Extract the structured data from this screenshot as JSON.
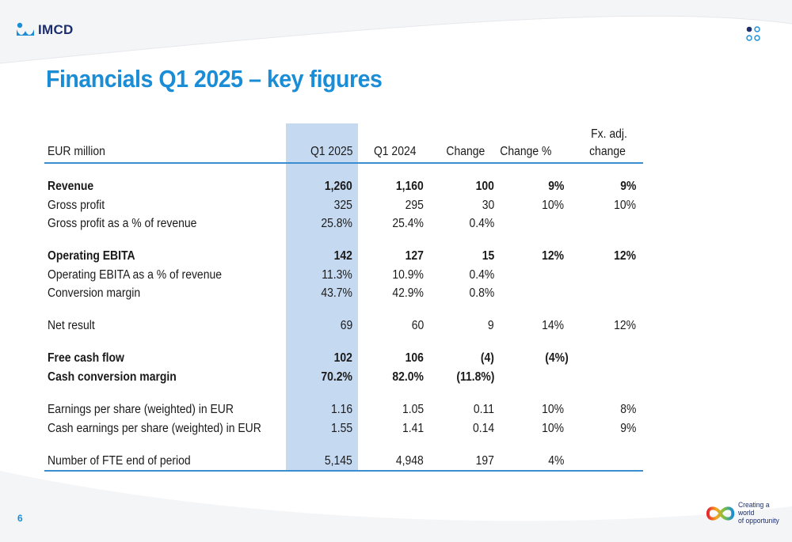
{
  "brand": {
    "name": "IMCD",
    "tagline_line1": "Creating a world",
    "tagline_line2": "of opportunity",
    "colors": {
      "accent": "#1a8dd6",
      "navy": "#1c2e6e",
      "highlight": "#c5d9f1",
      "rule": "#3a8ed0"
    }
  },
  "slide": {
    "title": "Financials Q1 2025 – key figures",
    "page_number": "6"
  },
  "table": {
    "unit_label": "EUR million",
    "columns": [
      "Q1 2025",
      "Q1 2024",
      "Change",
      "Change %",
      "Fx. adj.",
      "change"
    ],
    "rows": [
      {
        "label": "Revenue",
        "bold": true,
        "values": [
          "1,260",
          "1,160",
          "100",
          "9%",
          "9%"
        ]
      },
      {
        "label": "Gross profit",
        "bold": false,
        "values": [
          "325",
          "295",
          "30",
          "10%",
          "10%"
        ]
      },
      {
        "label": "Gross profit as a % of revenue",
        "bold": false,
        "values": [
          "25.8%",
          "25.4%",
          "0.4%",
          "",
          ""
        ]
      },
      {
        "label": "Operating EBITA",
        "bold": true,
        "values": [
          "142",
          "127",
          "15",
          "12%",
          "12%"
        ]
      },
      {
        "label": "Operating EBITA as a % of revenue",
        "bold": false,
        "values": [
          "11.3%",
          "10.9%",
          "0.4%",
          "",
          ""
        ]
      },
      {
        "label": "Conversion margin",
        "bold": false,
        "values": [
          "43.7%",
          "42.9%",
          "0.8%",
          "",
          ""
        ]
      },
      {
        "label": "Net result",
        "bold": false,
        "values": [
          "69",
          "60",
          "9",
          "14%",
          "12%"
        ]
      },
      {
        "label": "Free cash flow",
        "bold": true,
        "values": [
          "102",
          "106",
          "(4)",
          "(4%)",
          ""
        ]
      },
      {
        "label": "Cash conversion margin",
        "bold": true,
        "values": [
          "70.2%",
          "82.0%",
          "(11.8%)",
          "",
          ""
        ]
      },
      {
        "label": "Earnings per share (weighted) in EUR",
        "bold": false,
        "values": [
          "1.16",
          "1.05",
          "0.11",
          "10%",
          "8%"
        ]
      },
      {
        "label": "Cash earnings per share (weighted) in EUR",
        "bold": false,
        "values": [
          "1.55",
          "1.41",
          "0.14",
          "10%",
          "9%"
        ]
      },
      {
        "label": "Number of FTE end of period",
        "bold": false,
        "values": [
          "5,145",
          "4,948",
          "197",
          "4%",
          ""
        ]
      }
    ]
  }
}
